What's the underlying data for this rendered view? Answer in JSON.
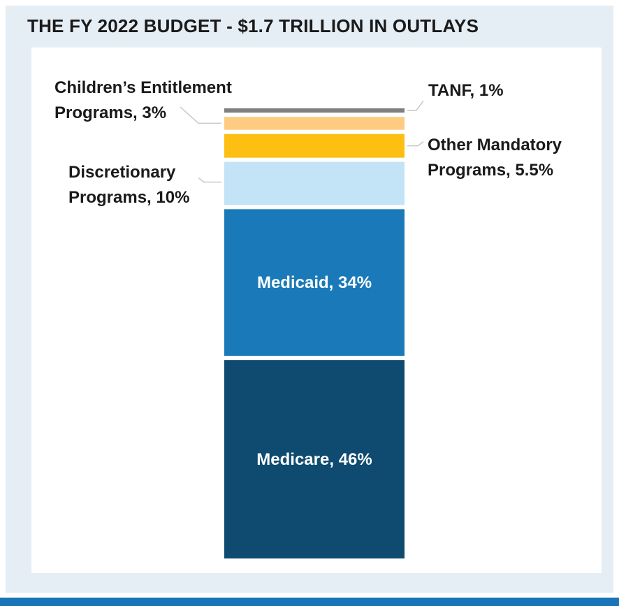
{
  "chart_data": {
    "type": "bar",
    "stacked": true,
    "title": "THE FY 2022 BUDGET - $1.7 TRILLION IN OUTLAYS",
    "unit": "%",
    "segments": [
      {
        "name": "Medicare",
        "value": 46,
        "label": "Medicare, 46%",
        "color": "#0f4a70",
        "label_position": "inside",
        "lines": [
          "Medicare, 46%"
        ]
      },
      {
        "name": "Medicaid",
        "value": 34,
        "label": "Medicaid, 34%",
        "color": "#1a7ab9",
        "label_position": "inside",
        "lines": [
          "Medicaid, 34%"
        ]
      },
      {
        "name": "Discretionary Programs",
        "value": 10,
        "label": "Discretionary Programs, 10%",
        "color": "#c3e4f6",
        "label_position": "left",
        "lines": [
          "Discretionary",
          "Programs, 10%"
        ]
      },
      {
        "name": "Other Mandatory Programs",
        "value": 5.5,
        "label": "Other Mandatory Programs, 5.5%",
        "color": "#fcbf12",
        "label_position": "right",
        "lines": [
          "Other Mandatory",
          "Programs, 5.5%"
        ]
      },
      {
        "name": "Children's Entitlement Programs",
        "value": 3,
        "label": "Children's Entitlement Programs, 3%",
        "color": "#fdcb82",
        "label_position": "left",
        "lines": [
          "Children’s Entitlement",
          "Programs, 3%"
        ]
      },
      {
        "name": "TANF",
        "value": 1,
        "label": "TANF, 1%",
        "color": "#7f7f7f",
        "label_position": "right",
        "lines": [
          "TANF, 1%"
        ]
      }
    ]
  }
}
